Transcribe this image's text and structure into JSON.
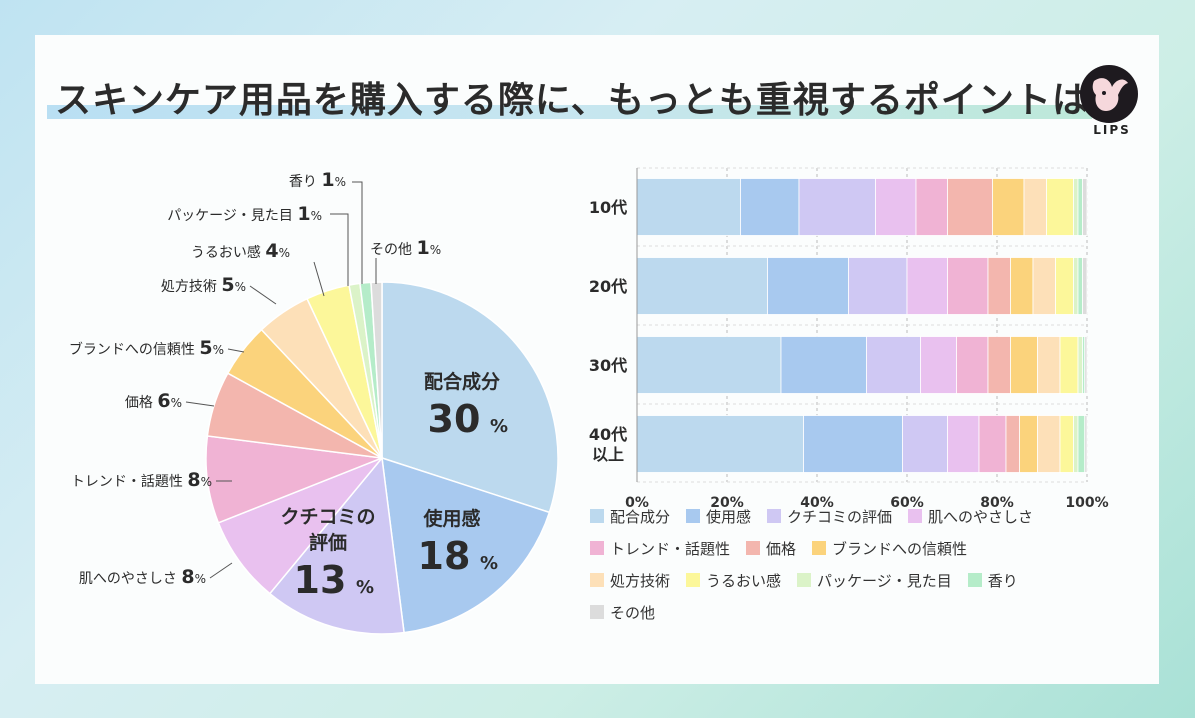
{
  "title": "スキンケア用品を購入する際に、もっとも重視するポイントは？",
  "logo": {
    "text": "LIPS"
  },
  "colors": [
    "#bcd9ee",
    "#a8c9ef",
    "#cfc8f3",
    "#e9c1ef",
    "#f0b3d4",
    "#f3b6ae",
    "#fbd37c",
    "#fde0b8",
    "#fcf79a",
    "#dbf3c8",
    "#b5ecc9",
    "#dcdcdc"
  ],
  "chart_data": [
    {
      "type": "pie",
      "title": "スキンケア用品を購入する際に、もっとも重視するポイントは？",
      "slices": [
        {
          "label": "配合成分",
          "value": 30,
          "text": "30%"
        },
        {
          "label": "使用感",
          "value": 18,
          "text": "18%"
        },
        {
          "label": "クチコミの評価",
          "value": 13,
          "text": "13%"
        },
        {
          "label": "肌へのやさしさ",
          "value": 8,
          "text": "8%"
        },
        {
          "label": "トレンド・話題性",
          "value": 8,
          "text": "8%"
        },
        {
          "label": "価格",
          "value": 6,
          "text": "6%"
        },
        {
          "label": "ブランドへの信頼性",
          "value": 5,
          "text": "5%"
        },
        {
          "label": "処方技術",
          "value": 5,
          "text": "5%"
        },
        {
          "label": "うるおい感",
          "value": 4,
          "text": "4%"
        },
        {
          "label": "パッケージ・見た目",
          "value": 1,
          "text": "1%"
        },
        {
          "label": "香り",
          "value": 1,
          "text": "1%"
        },
        {
          "label": "その他",
          "value": 1,
          "text": "1%"
        }
      ],
      "inside_labels": [
        {
          "line1": "配合成分",
          "line2": "",
          "pct": "30%"
        },
        {
          "line1": "使用感",
          "line2": "",
          "pct": "18%"
        },
        {
          "line1": "クチコミの",
          "line2": "評価",
          "pct": "13%"
        }
      ],
      "outside_labels": [
        {
          "name": "肌へのやさしさ",
          "num": "8",
          "unit": "%"
        },
        {
          "name": "トレンド・話題性",
          "num": "8",
          "unit": "%"
        },
        {
          "name": "価格",
          "num": "6",
          "unit": "%"
        },
        {
          "name": "ブランドへの信頼性",
          "num": "5",
          "unit": "%"
        },
        {
          "name": "処方技術",
          "num": "5",
          "unit": "%"
        },
        {
          "name": "うるおい感",
          "num": "4",
          "unit": "%"
        },
        {
          "name": "パッケージ・見た目",
          "num": "1",
          "unit": "%"
        },
        {
          "name": "香り",
          "num": "1",
          "unit": "%"
        },
        {
          "name": "その他",
          "num": "1",
          "unit": "%"
        }
      ]
    },
    {
      "type": "bar",
      "orientation": "horizontal",
      "stacked": true,
      "percent": true,
      "categories": [
        [
          "10代"
        ],
        [
          "20代"
        ],
        [
          "30代"
        ],
        [
          "40代",
          "以上"
        ]
      ],
      "xlim": [
        0,
        100
      ],
      "xticks": [
        "0%",
        "20%",
        "40%",
        "60%",
        "80%",
        "100%"
      ],
      "grid": true,
      "legend_position": "bottom",
      "series": [
        {
          "name": "配合成分",
          "values": [
            23,
            29,
            32,
            37
          ]
        },
        {
          "name": "使用感",
          "values": [
            13,
            18,
            19,
            22
          ]
        },
        {
          "name": "クチコミの評価",
          "values": [
            17,
            13,
            12,
            10
          ]
        },
        {
          "name": "肌へのやさしさ",
          "values": [
            9,
            9,
            8,
            7
          ]
        },
        {
          "name": "トレンド・話題性",
          "values": [
            7,
            9,
            7,
            6
          ]
        },
        {
          "name": "価格",
          "values": [
            10,
            5,
            5,
            3
          ]
        },
        {
          "name": "ブランドへの信頼性",
          "values": [
            7,
            5,
            6,
            4
          ]
        },
        {
          "name": "処方技術",
          "values": [
            5,
            5,
            5,
            5
          ]
        },
        {
          "name": "うるおい感",
          "values": [
            6,
            4,
            4,
            3
          ]
        },
        {
          "name": "パッケージ・見た目",
          "values": [
            1,
            1,
            1,
            1
          ]
        },
        {
          "name": "香り",
          "values": [
            1,
            1,
            0.5,
            1.5
          ]
        },
        {
          "name": "その他",
          "values": [
            1,
            1,
            0.5,
            0.5
          ]
        }
      ]
    }
  ]
}
